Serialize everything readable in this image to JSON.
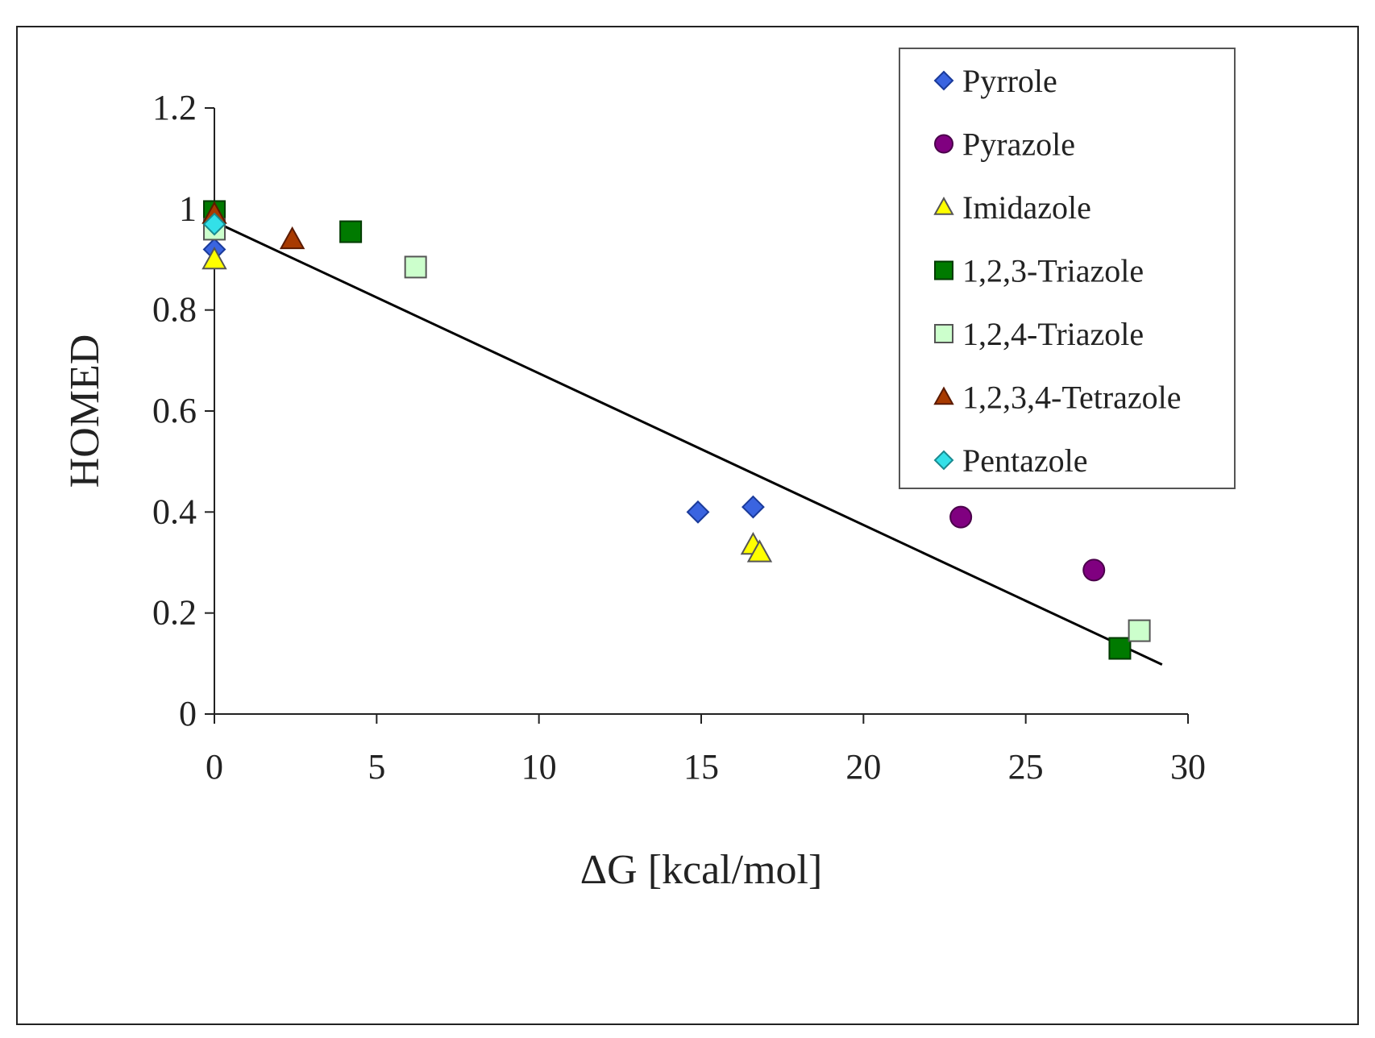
{
  "chart_data": {
    "type": "scatter",
    "xlabel": "ΔG [kcal/mol]",
    "ylabel": "HOMED",
    "xlim": [
      0,
      30
    ],
    "ylim": [
      0,
      1.2
    ],
    "x_ticks": [
      0,
      5,
      10,
      15,
      20,
      25,
      30
    ],
    "y_ticks": [
      0,
      0.2,
      0.4,
      0.6,
      0.8,
      1,
      1.2
    ],
    "x_tick_labels": [
      "0",
      "5",
      "10",
      "15",
      "20",
      "25",
      "30"
    ],
    "y_tick_labels": [
      "0",
      "0.2",
      "0.4",
      "0.6",
      "0.8",
      "1",
      "1.2"
    ],
    "grid": false,
    "legend_position": "top-right",
    "series": [
      {
        "name": "Pyrrole",
        "marker": "diamond",
        "color": "#3a64e0",
        "stroke": "#1a3a9a",
        "points": [
          [
            0,
            0.92
          ],
          [
            14.9,
            0.4
          ],
          [
            16.6,
            0.41
          ]
        ]
      },
      {
        "name": "Pyrazole",
        "marker": "circle",
        "color": "#800080",
        "stroke": "#4a004a",
        "points": [
          [
            23.0,
            0.39
          ],
          [
            27.1,
            0.285
          ]
        ]
      },
      {
        "name": "Imidazole",
        "marker": "triangle",
        "color": "#ffff00",
        "stroke": "#555555",
        "points": [
          [
            0,
            0.9
          ],
          [
            16.6,
            0.335
          ],
          [
            16.8,
            0.32
          ]
        ]
      },
      {
        "name": "1,2,3-Triazole",
        "marker": "square",
        "color": "#007a00",
        "stroke": "#003a00",
        "points": [
          [
            0,
            0.995
          ],
          [
            4.2,
            0.955
          ],
          [
            27.9,
            0.13
          ]
        ]
      },
      {
        "name": "1,2,4-Triazole",
        "marker": "square",
        "color": "#ccffcc",
        "stroke": "#555555",
        "points": [
          [
            0,
            0.96
          ],
          [
            6.2,
            0.885
          ],
          [
            28.5,
            0.165
          ]
        ]
      },
      {
        "name": "1,2,3,4-Tetrazole",
        "marker": "triangle",
        "color": "#a83a00",
        "stroke": "#5a1a00",
        "points": [
          [
            0,
            0.99
          ],
          [
            2.4,
            0.94
          ]
        ]
      },
      {
        "name": "Pentazole",
        "marker": "diamond",
        "color": "#33e0e8",
        "stroke": "#1a8a90",
        "points": [
          [
            0,
            0.97
          ]
        ]
      }
    ],
    "trendline": {
      "x": [
        0,
        29.2
      ],
      "y": [
        0.975,
        0.098
      ],
      "color": "#000000"
    }
  }
}
